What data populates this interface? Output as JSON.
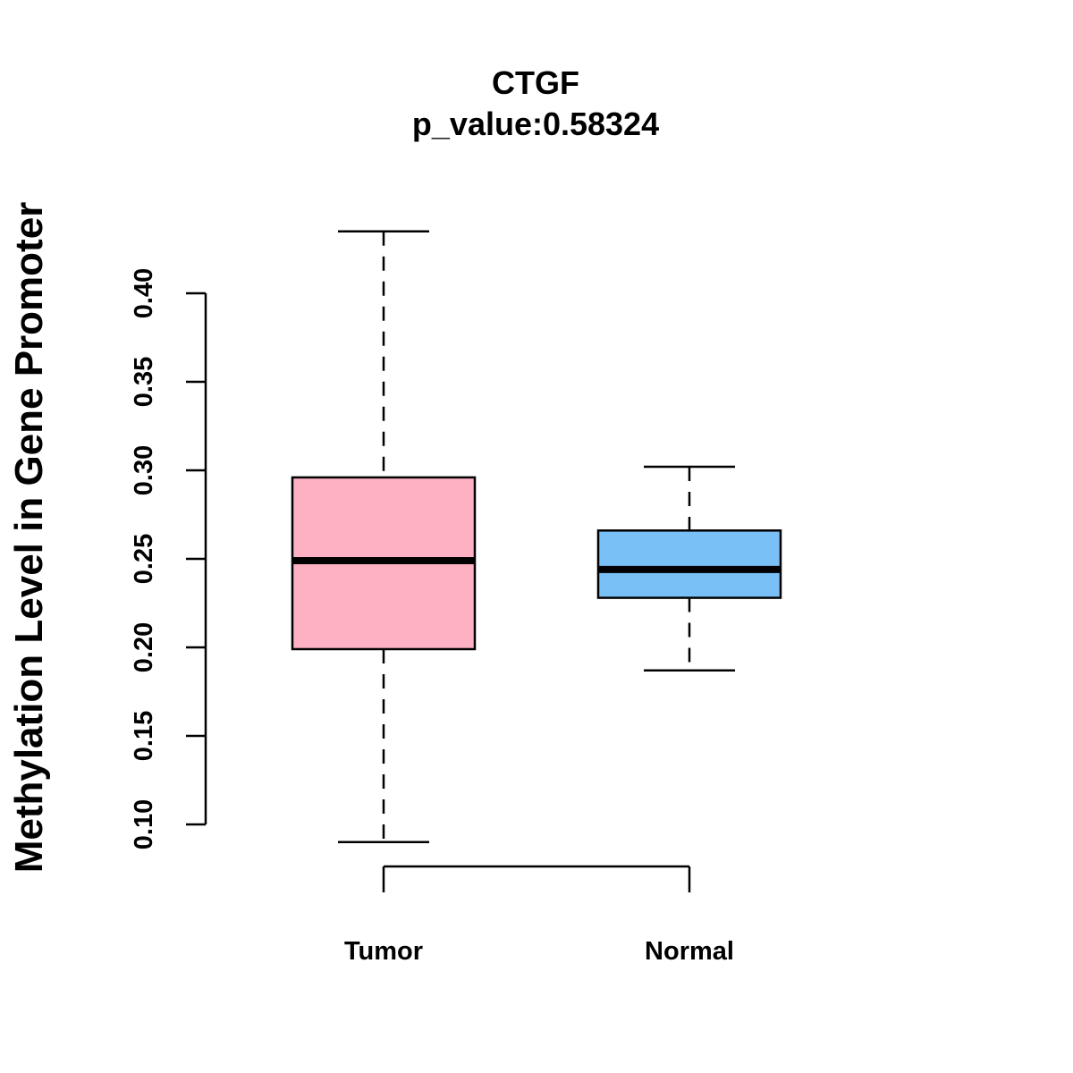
{
  "chart_data": {
    "type": "boxplot",
    "title": "CTGF",
    "subtitle": "p_value:0.58324",
    "xlabel": "",
    "ylabel": "Methylation Level in Gene Promoter",
    "ylim": [
      0.1,
      0.4
    ],
    "yticks": [
      0.1,
      0.15,
      0.2,
      0.25,
      0.3,
      0.35,
      0.4
    ],
    "ytick_labels": [
      "0.10",
      "0.15",
      "0.20",
      "0.25",
      "0.30",
      "0.35",
      "0.40"
    ],
    "grid": false,
    "categories": [
      "Tumor",
      "Normal"
    ],
    "series": [
      {
        "name": "Tumor",
        "min": 0.09,
        "q1": 0.199,
        "median": 0.249,
        "q3": 0.296,
        "max": 0.435,
        "color": "#FDB1C3"
      },
      {
        "name": "Normal",
        "min": 0.187,
        "q1": 0.228,
        "median": 0.244,
        "q3": 0.266,
        "max": 0.302,
        "color": "#79C0F7"
      }
    ]
  }
}
